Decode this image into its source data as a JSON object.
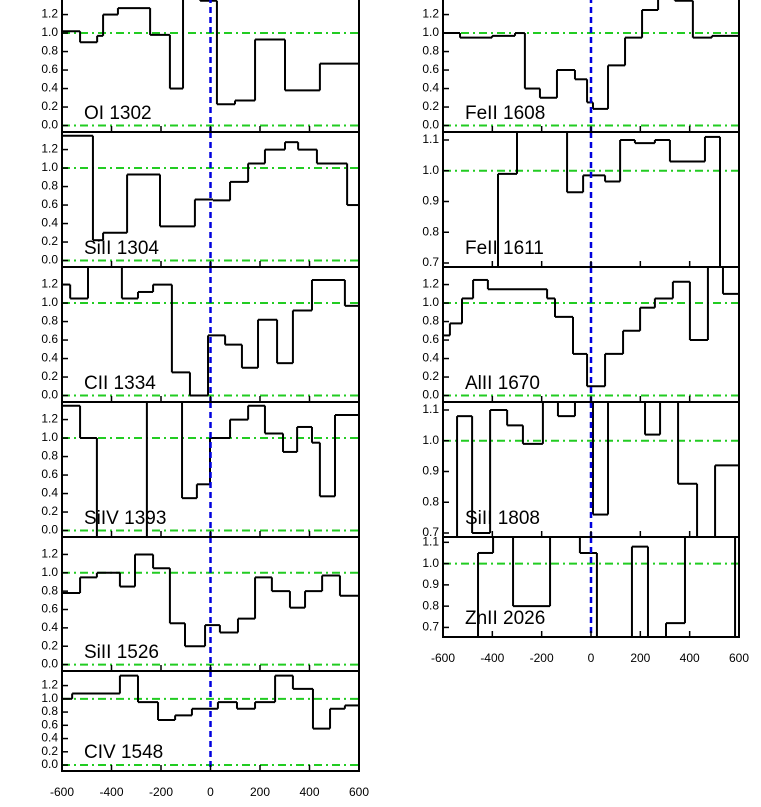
{
  "chart_data": [
    {
      "type": "line",
      "drawstyle": "steps-post",
      "title": "OI 1302",
      "x": [
        -600,
        -527,
        -458,
        -434,
        -374,
        -244,
        -164,
        -111,
        -42,
        26,
        99,
        180,
        301,
        442
      ],
      "values": [
        1.02,
        0.9,
        0.97,
        1.2,
        1.27,
        0.98,
        0.4,
        1.45,
        1.35,
        0.23,
        0.27,
        0.93,
        0.38,
        0.67
      ],
      "xlim": [
        -600,
        600
      ],
      "xticks": [
        -600,
        -400,
        -200,
        0,
        200,
        400,
        600
      ],
      "ylim": [
        -0.07,
        1.39
      ],
      "yticks": [
        {
          "value": 0,
          "label": "0.0"
        },
        {
          "value": 0.2,
          "label": "0.2"
        },
        {
          "value": 0.4,
          "label": "0.4"
        },
        {
          "value": 0.6,
          "label": "0.6"
        },
        {
          "value": 0.8,
          "label": "0.8"
        },
        {
          "value": 1,
          "label": "1.0"
        },
        {
          "value": 1.2,
          "label": "1.2"
        }
      ],
      "hlines": [
        0,
        1
      ],
      "vline": 0,
      "color": "#000000"
    },
    {
      "type": "line",
      "drawstyle": "steps-post",
      "title": "SiII 1304",
      "x": [
        -600,
        -475,
        -434,
        -337,
        -204,
        -63,
        10,
        79,
        152,
        220,
        301,
        354,
        430,
        552
      ],
      "values": [
        1.35,
        0.22,
        0.3,
        0.93,
        0.37,
        0.66,
        0.65,
        0.85,
        1.05,
        1.2,
        1.28,
        1.2,
        1.05,
        0.6
      ],
      "xlim": [
        -600,
        600
      ],
      "xticks": [
        -600,
        -400,
        -200,
        0,
        200,
        400,
        600
      ],
      "ylim": [
        -0.07,
        1.39
      ],
      "yticks": [
        {
          "value": 0,
          "label": "0.0"
        },
        {
          "value": 0.2,
          "label": "0.2"
        },
        {
          "value": 0.4,
          "label": "0.4"
        },
        {
          "value": 0.6,
          "label": "0.6"
        },
        {
          "value": 0.8,
          "label": "0.8"
        },
        {
          "value": 1,
          "label": "1.0"
        },
        {
          "value": 1.2,
          "label": "1.2"
        }
      ],
      "hlines": [
        0,
        1
      ],
      "vline": 0,
      "color": "#000000"
    },
    {
      "type": "line",
      "drawstyle": "steps-post",
      "title": "CII 1334",
      "x": [
        -600,
        -567,
        -495,
        -358,
        -293,
        -232,
        -156,
        -83,
        -10,
        59,
        127,
        192,
        269,
        333,
        410,
        543
      ],
      "values": [
        1.2,
        1.05,
        1.45,
        1.05,
        1.12,
        1.2,
        0.25,
        0.0,
        0.65,
        0.55,
        0.3,
        0.82,
        0.35,
        0.92,
        1.25,
        0.97
      ],
      "xlim": [
        -600,
        600
      ],
      "xticks": [
        -600,
        -400,
        -200,
        0,
        200,
        400,
        600
      ],
      "ylim": [
        -0.07,
        1.39
      ],
      "yticks": [
        {
          "value": 0,
          "label": "0.0"
        },
        {
          "value": 0.2,
          "label": "0.2"
        },
        {
          "value": 0.4,
          "label": "0.4"
        },
        {
          "value": 0.6,
          "label": "0.6"
        },
        {
          "value": 0.8,
          "label": "0.8"
        },
        {
          "value": 1,
          "label": "1.0"
        },
        {
          "value": 1.2,
          "label": "1.2"
        }
      ],
      "hlines": [
        0,
        1
      ],
      "vline": 0,
      "color": "#000000"
    },
    {
      "type": "line",
      "drawstyle": "steps-post",
      "title": "SiIV 1393",
      "x": [
        -600,
        -527,
        -459,
        -257,
        -115,
        -55,
        -2,
        79,
        152,
        220,
        293,
        350,
        410,
        442,
        503
      ],
      "values": [
        1.35,
        1.0,
        -0.1,
        1.45,
        0.35,
        0.5,
        1.0,
        1.2,
        1.35,
        1.05,
        0.85,
        1.12,
        0.95,
        0.37,
        1.25
      ],
      "xlim": [
        -600,
        600
      ],
      "xticks": [
        -600,
        -400,
        -200,
        0,
        200,
        400,
        600
      ],
      "ylim": [
        -0.07,
        1.39
      ],
      "yticks": [
        {
          "value": 0,
          "label": "0.0"
        },
        {
          "value": 0.2,
          "label": "0.2"
        },
        {
          "value": 0.4,
          "label": "0.4"
        },
        {
          "value": 0.6,
          "label": "0.6"
        },
        {
          "value": 0.8,
          "label": "0.8"
        },
        {
          "value": 1,
          "label": "1.0"
        },
        {
          "value": 1.2,
          "label": "1.2"
        }
      ],
      "hlines": [
        0,
        1
      ],
      "vline": 0,
      "color": "#000000"
    },
    {
      "type": "line",
      "drawstyle": "steps-post",
      "title": "SiII 1526",
      "x": [
        -600,
        -527,
        -459,
        -366,
        -305,
        -232,
        -164,
        -103,
        -22,
        38,
        111,
        180,
        248,
        321,
        382,
        451,
        523
      ],
      "values": [
        0.78,
        0.95,
        1.0,
        0.85,
        1.2,
        1.05,
        0.45,
        0.2,
        0.43,
        0.35,
        0.5,
        0.95,
        0.8,
        0.62,
        0.8,
        0.97,
        0.75
      ],
      "xlim": [
        -600,
        600
      ],
      "xticks": [
        -600,
        -400,
        -200,
        0,
        200,
        400,
        600
      ],
      "ylim": [
        -0.07,
        1.39
      ],
      "yticks": [
        {
          "value": 0,
          "label": "0.0"
        },
        {
          "value": 0.2,
          "label": "0.2"
        },
        {
          "value": 0.4,
          "label": "0.4"
        },
        {
          "value": 0.6,
          "label": "0.6"
        },
        {
          "value": 0.8,
          "label": "0.8"
        },
        {
          "value": 1,
          "label": "1.0"
        },
        {
          "value": 1.2,
          "label": "1.2"
        }
      ],
      "hlines": [
        0,
        1
      ],
      "vline": 0,
      "color": "#000000"
    },
    {
      "type": "line",
      "drawstyle": "steps-post",
      "title": "CIV 1548",
      "x": [
        -600,
        -559,
        -366,
        -293,
        -212,
        -143,
        -75,
        30,
        107,
        180,
        261,
        333,
        414,
        483,
        543
      ],
      "values": [
        1.0,
        1.08,
        1.35,
        0.95,
        0.68,
        0.75,
        0.85,
        0.95,
        0.85,
        0.95,
        1.35,
        1.15,
        0.55,
        0.85,
        0.9
      ],
      "xlim": [
        -600,
        600
      ],
      "xticks": [
        -600,
        -400,
        -200,
        0,
        200,
        400,
        600
      ],
      "ylim": [
        -0.09,
        1.42
      ],
      "yticks": [
        {
          "value": 0,
          "label": "0.0"
        },
        {
          "value": 0.2,
          "label": "0.2"
        },
        {
          "value": 0.4,
          "label": "0.4"
        },
        {
          "value": 0.6,
          "label": "0.6"
        },
        {
          "value": 0.8,
          "label": "0.8"
        },
        {
          "value": 1,
          "label": "1.0"
        },
        {
          "value": 1.2,
          "label": "1.2"
        }
      ],
      "hlines": [
        0,
        1
      ],
      "vline": 0,
      "color": "#000000"
    },
    {
      "type": "line",
      "drawstyle": "steps-post",
      "title": "FeII 1608",
      "x": [
        -600,
        -531,
        -401,
        -308,
        -268,
        -207,
        -138,
        -65,
        -16,
        8,
        69,
        138,
        207,
        272,
        340,
        413,
        490
      ],
      "values": [
        1.0,
        0.95,
        0.97,
        1.0,
        0.4,
        0.3,
        0.6,
        0.5,
        0.25,
        0.18,
        0.65,
        0.95,
        1.25,
        1.45,
        1.35,
        0.95,
        0.97
      ],
      "xlim": [
        -600,
        600
      ],
      "xticks": [
        -600,
        -400,
        -200,
        0,
        200,
        400,
        600
      ],
      "ylim": [
        -0.07,
        1.39
      ],
      "yticks": [
        {
          "value": 0,
          "label": "0.0"
        },
        {
          "value": 0.2,
          "label": "0.2"
        },
        {
          "value": 0.4,
          "label": "0.4"
        },
        {
          "value": 0.6,
          "label": "0.6"
        },
        {
          "value": 0.8,
          "label": "0.8"
        },
        {
          "value": 1,
          "label": "1.0"
        },
        {
          "value": 1.2,
          "label": "1.2"
        }
      ],
      "hlines": [
        0,
        1
      ],
      "vline": 0,
      "color": "#000000"
    },
    {
      "type": "line",
      "drawstyle": "steps-post",
      "title": "FeII 1611",
      "x": [
        -600,
        -377,
        -300,
        -97,
        -32,
        57,
        118,
        178,
        259,
        320,
        462,
        523
      ],
      "values": [
        0.65,
        0.99,
        1.15,
        0.93,
        0.985,
        0.965,
        1.1,
        1.09,
        1.1,
        1.03,
        1.11,
        0.65
      ],
      "xlim": [
        -600,
        600
      ],
      "xticks": [
        -600,
        -400,
        -200,
        0,
        200,
        400,
        600
      ],
      "ylim": [
        0.687,
        1.126
      ],
      "yticks": [
        0.7,
        0.8,
        0.9,
        {
          "value": 1,
          "label": "1.0"
        },
        1.1
      ],
      "hlines": [
        1
      ],
      "vline": 0,
      "color": "#000000"
    },
    {
      "type": "line",
      "drawstyle": "steps-post",
      "title": "AlII 1670",
      "x": [
        -600,
        -572,
        -523,
        -478,
        -418,
        -178,
        -146,
        -73,
        -16,
        57,
        130,
        199,
        259,
        332,
        401,
        474,
        535
      ],
      "values": [
        0.65,
        0.78,
        1.05,
        1.25,
        1.15,
        1.05,
        0.85,
        0.45,
        0.1,
        0.45,
        0.7,
        0.95,
        1.05,
        1.23,
        0.6,
        1.45,
        1.1
      ],
      "xlim": [
        -600,
        600
      ],
      "xticks": [
        -600,
        -400,
        -200,
        0,
        200,
        400,
        600
      ],
      "ylim": [
        -0.07,
        1.39
      ],
      "yticks": [
        {
          "value": 0,
          "label": "0.0"
        },
        {
          "value": 0.2,
          "label": "0.2"
        },
        {
          "value": 0.4,
          "label": "0.4"
        },
        {
          "value": 0.6,
          "label": "0.6"
        },
        {
          "value": 0.8,
          "label": "0.8"
        },
        {
          "value": 1,
          "label": "1.0"
        },
        {
          "value": 1.2,
          "label": "1.2"
        }
      ],
      "hlines": [
        0,
        1
      ],
      "vline": 0,
      "color": "#000000"
    },
    {
      "type": "line",
      "drawstyle": "steps-post",
      "title": "SiII 1808",
      "x": [
        -600,
        -543,
        -482,
        -409,
        -340,
        -276,
        -195,
        -134,
        -65,
        8,
        69,
        219,
        280,
        353,
        430,
        503
      ],
      "values": [
        0.65,
        1.08,
        0.7,
        1.1,
        1.05,
        0.99,
        1.15,
        1.08,
        1.15,
        0.76,
        1.15,
        1.02,
        1.15,
        0.86,
        0.65,
        0.92
      ],
      "xlim": [
        -600,
        600
      ],
      "xticks": [
        -600,
        -400,
        -200,
        0,
        200,
        400,
        600
      ],
      "ylim": [
        0.687,
        1.126
      ],
      "yticks": [
        0.7,
        0.8,
        0.9,
        {
          "value": 1,
          "label": "1.0"
        },
        1.1
      ],
      "hlines": [
        1
      ],
      "vline": 0,
      "color": "#000000"
    },
    {
      "type": "line",
      "drawstyle": "steps-post",
      "title": "ZnII 2026",
      "x": [
        -600,
        -458,
        -397,
        -316,
        -166,
        -45,
        24,
        166,
        231,
        304,
        381,
        584
      ],
      "values": [
        0.62,
        1.05,
        1.15,
        0.8,
        1.15,
        1.05,
        0.62,
        1.08,
        0.62,
        0.72,
        1.15,
        0.62
      ],
      "xlim": [
        -600,
        600
      ],
      "xticks": [
        -600,
        -400,
        -200,
        0,
        200,
        400,
        600
      ],
      "ylim": [
        0.655,
        1.125
      ],
      "yticks": [
        0.7,
        0.8,
        0.9,
        {
          "value": 1,
          "label": "1.0"
        },
        1.1
      ],
      "hlines": [
        1
      ],
      "vline": 0,
      "color": "#000000"
    }
  ]
}
